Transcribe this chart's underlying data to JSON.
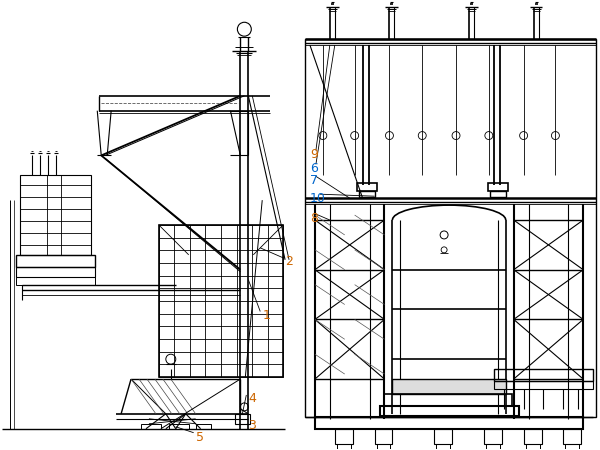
{
  "bg_color": "#ffffff",
  "line_color": "#000000",
  "label_color_orange": "#cc6600",
  "label_color_blue": "#0066cc",
  "figure_width": 6.0,
  "figure_height": 4.5,
  "dpi": 100
}
